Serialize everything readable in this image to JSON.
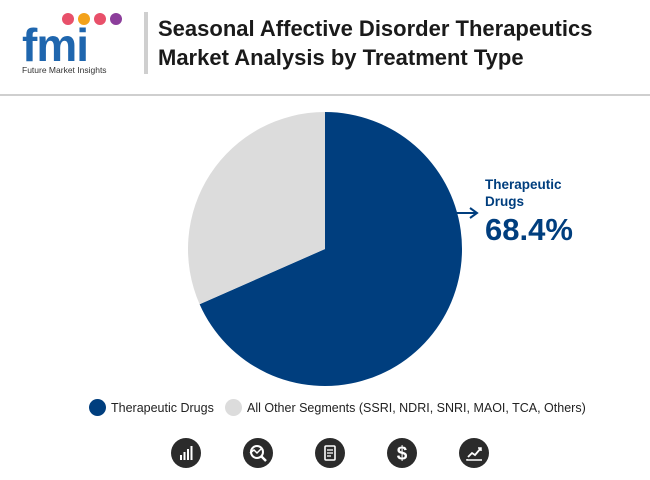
{
  "brand": {
    "letters": "fmi",
    "tagline": "Future Market Insights",
    "dot_colors": [
      "#e8506a",
      "#f3a21b",
      "#e8506a",
      "#8c3e9b"
    ]
  },
  "title_lines": [
    "Seasonal Affective Disorder Therapeutics",
    "Market Analysis by Treatment Type"
  ],
  "chart_data": {
    "type": "pie",
    "title": "Seasonal Affective Disorder Therapeutics Market Analysis by Treatment Type",
    "slices": [
      {
        "name": "Therapeutic Drugs",
        "value": 68.4,
        "color": "#003e7e"
      },
      {
        "name": "All Other Segments (SSRI, NDRI, SNRI, MAOI, TCA, Others)",
        "value": 31.6,
        "color": "#dcdcdc"
      }
    ],
    "annotation": {
      "label_line1": "Therapeutic",
      "label_line2": "Drugs",
      "value_text": "68.4%"
    },
    "legend_position": "bottom"
  },
  "footer_icons": [
    "growth-chart-icon",
    "magnifier-chart-icon",
    "document-icon",
    "dollar-icon",
    "trend-chart-icon"
  ]
}
